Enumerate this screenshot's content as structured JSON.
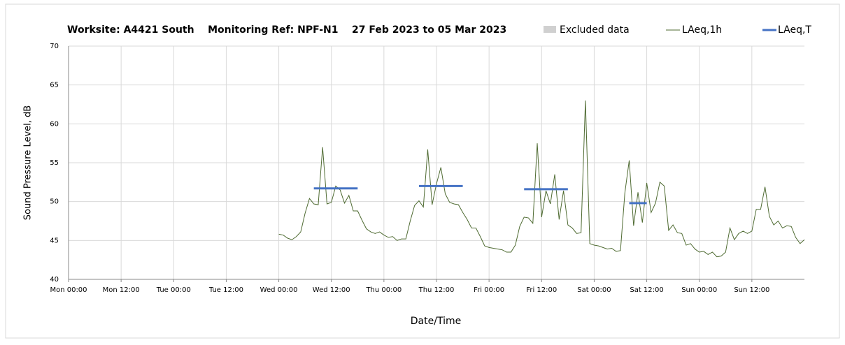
{
  "chart_data": {
    "type": "line",
    "title": "Worksite: A4421 South    Monitoring Ref: NPF-N1    27 Feb 2023 to 05 Mar 2023",
    "x_label": "Date/Time",
    "y_label": "Sound Pressure Level, dB",
    "xlim": [
      0,
      168
    ],
    "ylim": [
      40,
      70
    ],
    "xticks": [
      {
        "value": 0,
        "label": "Mon 00:00"
      },
      {
        "value": 12,
        "label": "Mon 12:00"
      },
      {
        "value": 24,
        "label": "Tue 00:00"
      },
      {
        "value": 36,
        "label": "Tue 12:00"
      },
      {
        "value": 48,
        "label": "Wed 00:00"
      },
      {
        "value": 60,
        "label": "Wed 12:00"
      },
      {
        "value": 72,
        "label": "Thu 00:00"
      },
      {
        "value": 84,
        "label": "Thu 12:00"
      },
      {
        "value": 96,
        "label": "Fri 00:00"
      },
      {
        "value": 108,
        "label": "Fri 12:00"
      },
      {
        "value": 120,
        "label": "Sat 00:00"
      },
      {
        "value": 132,
        "label": "Sat 12:00"
      },
      {
        "value": 144,
        "label": "Sun 00:00"
      },
      {
        "value": 156,
        "label": "Sun 12:00"
      }
    ],
    "yticks": [
      40,
      45,
      50,
      55,
      60,
      65,
      70
    ],
    "grid": true,
    "legend": [
      {
        "name": "Excluded data",
        "color": "#d0d0d0"
      }
    ],
    "series": [
      {
        "name": "LAeq,1h",
        "color": "#4f6b32",
        "x": [
          48,
          49,
          50,
          51,
          52,
          53,
          54,
          55,
          56,
          57,
          58,
          59,
          60,
          61,
          62,
          63,
          64,
          65,
          66,
          67,
          68,
          69,
          70,
          71,
          72,
          73,
          74,
          75,
          76,
          77,
          78,
          79,
          80,
          81,
          82,
          83,
          84,
          85,
          86,
          87,
          88,
          89,
          90,
          91,
          92,
          93,
          94,
          95,
          96,
          97,
          98,
          99,
          100,
          101,
          102,
          103,
          104,
          105,
          106,
          107,
          108,
          109,
          110,
          111,
          112,
          113,
          114,
          115,
          116,
          117,
          118,
          119,
          120,
          121,
          122,
          123,
          124,
          125,
          126,
          127,
          128,
          129,
          130,
          131,
          132,
          133,
          134,
          135,
          136,
          137,
          138,
          139,
          140,
          141,
          142,
          143,
          144,
          145,
          146,
          147,
          148,
          149,
          150,
          151,
          152,
          153,
          154,
          155,
          156,
          157,
          158,
          159,
          160,
          161,
          162,
          163,
          164,
          165,
          166,
          167,
          168
        ],
        "values": [
          45.8,
          45.7,
          45.3,
          45.1,
          45.5,
          46.1,
          48.5,
          50.4,
          49.7,
          49.6,
          57,
          49.7,
          49.9,
          52,
          51.5,
          49.8,
          50.8,
          48.8,
          48.8,
          47.6,
          46.5,
          46.1,
          45.9,
          46.1,
          45.7,
          45.4,
          45.5,
          45.0,
          45.2,
          45.2,
          47.5,
          49.5,
          50.1,
          49.3,
          56.7,
          49.6,
          52.3,
          54.4,
          51,
          49.9,
          49.7,
          49.6,
          48.6,
          47.7,
          46.6,
          46.6,
          45.5,
          44.3,
          44.1,
          44.0,
          43.9,
          43.8,
          43.5,
          43.5,
          44.4,
          46.8,
          48.0,
          47.9,
          47.2,
          57.5,
          48.0,
          51.4,
          49.7,
          53.5,
          47.7,
          51.4,
          47.0,
          46.6,
          45.9,
          46.0,
          63.0,
          44.6,
          44.4,
          44.3,
          44.1,
          43.9,
          44.0,
          43.6,
          43.7,
          51.1,
          55.3,
          46.9,
          51.2,
          47.3,
          52.4,
          48.6,
          49.8,
          52.5,
          52,
          46.3,
          47.0,
          46.0,
          45.9,
          44.4,
          44.6,
          43.9,
          43.5,
          43.6,
          43.2,
          43.5,
          42.9,
          43.0,
          43.5,
          46.6,
          45.1,
          45.9,
          46.2,
          45.9,
          46.2,
          49.0,
          49.0,
          51.9,
          48.1,
          47.0,
          47.5,
          46.6,
          46.9,
          46.8,
          45.4,
          44.6,
          45.1
        ]
      },
      {
        "name": "LAeq,T",
        "color": "#4472c4",
        "x_start": [
          56,
          80,
          104,
          128
        ],
        "x_end": [
          66,
          90,
          114,
          132
        ],
        "values": [
          51.7,
          52.0,
          51.6,
          49.8
        ]
      }
    ]
  }
}
